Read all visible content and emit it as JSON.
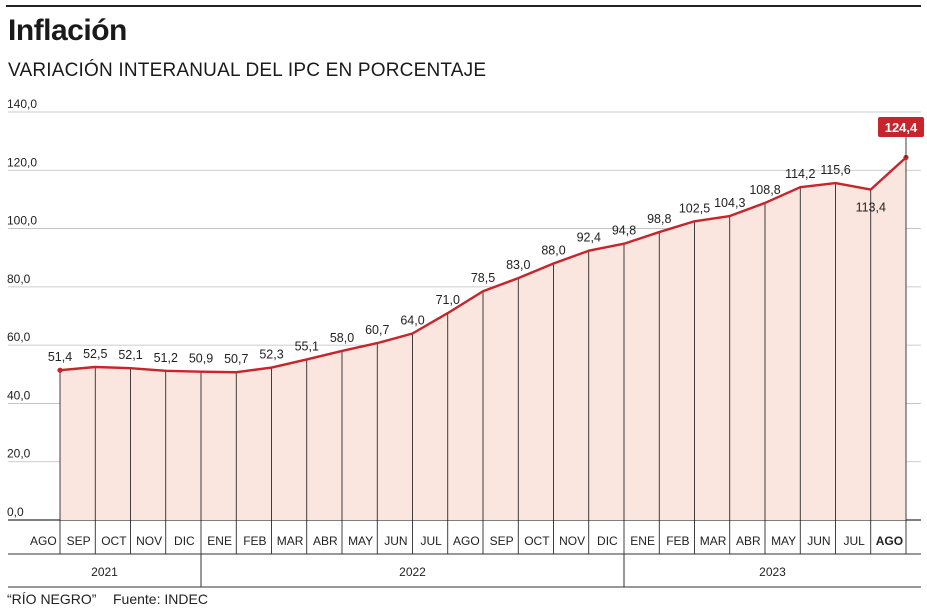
{
  "header": {
    "title": "Inflación",
    "subtitle": "VARIACIÓN INTERANUAL DEL IPC EN PORCENTAJE"
  },
  "footer": {
    "credit": "“RÍO NEGRO”",
    "source": "Fuente: INDEC"
  },
  "colors": {
    "line": "#c8242b",
    "area": "#fbe6df",
    "grid": "#bdbdbd",
    "highlight_label_bg": "#c8242b",
    "highlight_label_text": "#ffffff"
  },
  "chart_data": {
    "type": "area",
    "ylim": [
      0,
      140
    ],
    "yticks": [
      0,
      20,
      40,
      60,
      80,
      100,
      120,
      140
    ],
    "ytick_labels": [
      "0,0",
      "20,0",
      "40,0",
      "60,0",
      "80,0",
      "100,0",
      "120,0",
      "140,0"
    ],
    "grid": "horizontal",
    "categories": [
      "AGO",
      "SEP",
      "OCT",
      "NOV",
      "DIC",
      "ENE",
      "FEB",
      "MAR",
      "ABR",
      "MAY",
      "JUN",
      "JUL",
      "AGO",
      "SEP",
      "OCT",
      "NOV",
      "DIC",
      "ENE",
      "FEB",
      "MAR",
      "ABR",
      "MAY",
      "JUN",
      "JUL",
      "AGO"
    ],
    "values": [
      51.4,
      52.5,
      52.1,
      51.2,
      50.9,
      50.7,
      52.3,
      55.1,
      58.0,
      60.7,
      64.0,
      71.0,
      78.5,
      83.0,
      88.0,
      92.4,
      94.8,
      98.8,
      102.5,
      104.3,
      108.8,
      114.2,
      115.6,
      113.4,
      124.4
    ],
    "data_labels": [
      "51,4",
      "52,5",
      "52,1",
      "51,2",
      "50,9",
      "50,7",
      "52,3",
      "55,1",
      "58,0",
      "60,7",
      "64,0",
      "71,0",
      "78,5",
      "83,0",
      "88,0",
      "92,4",
      "94,8",
      "98,8",
      "102,5",
      "104,3",
      "108,8",
      "114,2",
      "115,6",
      "113,4",
      "124,4"
    ],
    "highlight_index": 24,
    "years": [
      {
        "label": "2021",
        "start": 0,
        "end": 4
      },
      {
        "label": "2022",
        "start": 5,
        "end": 16
      },
      {
        "label": "2023",
        "start": 17,
        "end": 24
      }
    ]
  }
}
